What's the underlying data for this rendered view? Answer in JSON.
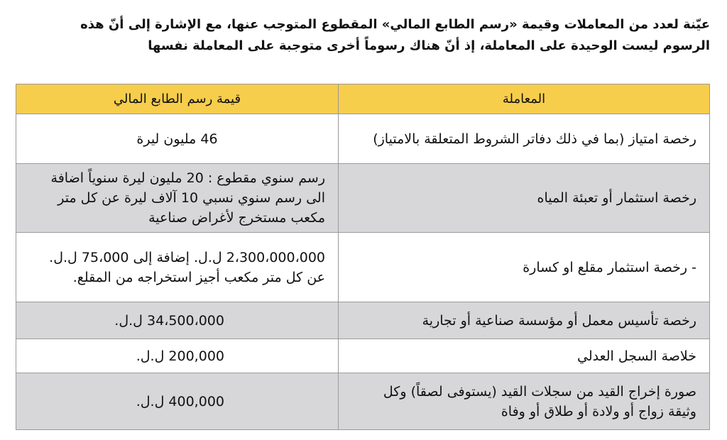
{
  "intro": {
    "lines": [
      "عيّنة لعدد من المعاملات وقيمة «رسم الطابع المالي» المقطوع المتوجب عنها، مع الإشارة إلى أنّ هذه",
      "الرسوم ليست الوحيدة على المعاملة، إذ أنّ هناك رسوماً أخرى متوجبة على المعاملة نفسها"
    ]
  },
  "table": {
    "header": [
      "المعاملة",
      "قيمة رسم الطابع المالي"
    ],
    "rows": [
      [
        "رخصة امتياز (بما في ذلك دفاتر الشروط المتعلقة بالامتياز)",
        "46 مليون ليرة"
      ],
      [
        "رخصة استثمار أو تعبئة المياه",
        "رسم سنوي مقطوع : 20 مليون ليرة سنوياً اضافة الى رسم سنوي نسبي 10 آلاف ليرة عن كل متر مكعب مستخرج لأغراض صناعية"
      ],
      [
        "- رخصة استثمار مقلع او كسارة",
        "2،300،000،000 ل.ل. إضافة إلى 75،000 ل.ل. عن كل متر مكعب أجيز استخراجه من المقلع."
      ],
      [
        "رخصة تأسيس معمل أو مؤسسة صناعية أو تجارية",
        "34،500،000 ل.ل."
      ],
      [
        "خلاصة السجل العدلي",
        "200,000 ل.ل."
      ],
      [
        "صورة إخراج القيد من سجلات القيد (يستوفى لصقاً) وكل وثيقة زواج أو ولادة أو طلاق أو وفاة",
        "400,000 ل.ل."
      ]
    ]
  }
}
